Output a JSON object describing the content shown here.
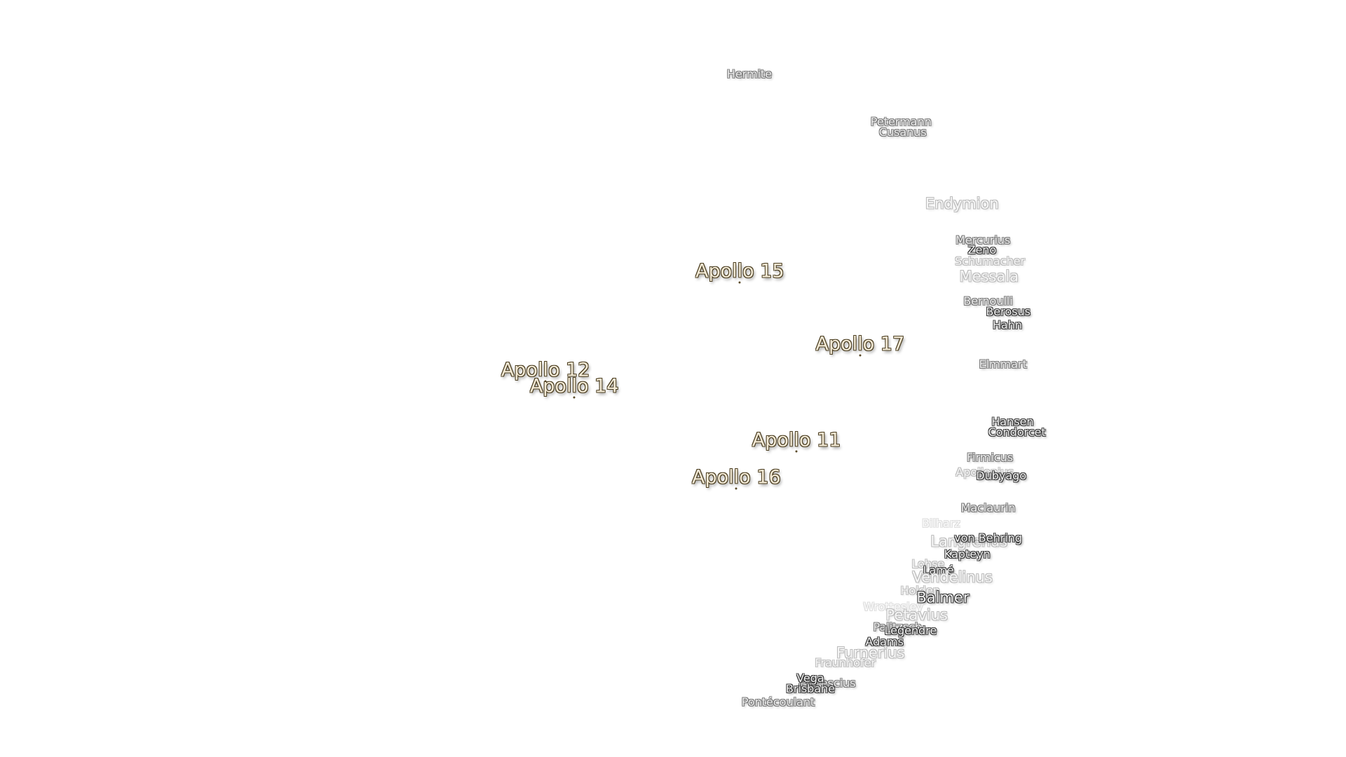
{
  "labels": [
    "Hermite",
    "Petermann",
    "Cusanus",
    "Endymion",
    "Mercurius",
    "Zeno",
    "Schumacher",
    "Messala",
    "Bernoulli",
    "Berosus",
    "Hahn",
    "Apollo 15",
    "Apollo 17",
    "Apollo 12",
    "Apollo 14",
    "Apollo 11",
    "Apollo 16",
    "Elmmart",
    "Hansen",
    "Condorcet",
    "Firmicus",
    "Apollonius",
    "Dubyago",
    "Maclaurin",
    "Bilharz",
    "Langrenus",
    "von Behring",
    "Kapteyn",
    "Lohse",
    "Lamé",
    "Vendelinus",
    "Holden",
    "Balmer",
    "Wrottesley",
    "Petavius",
    "Palitzsch",
    "Legendre",
    "Adams",
    "Furnerius",
    "Fraunhofer",
    "Peirescius",
    "Vega",
    "Brisbane",
    "Pontécoulant"
  ]
}
